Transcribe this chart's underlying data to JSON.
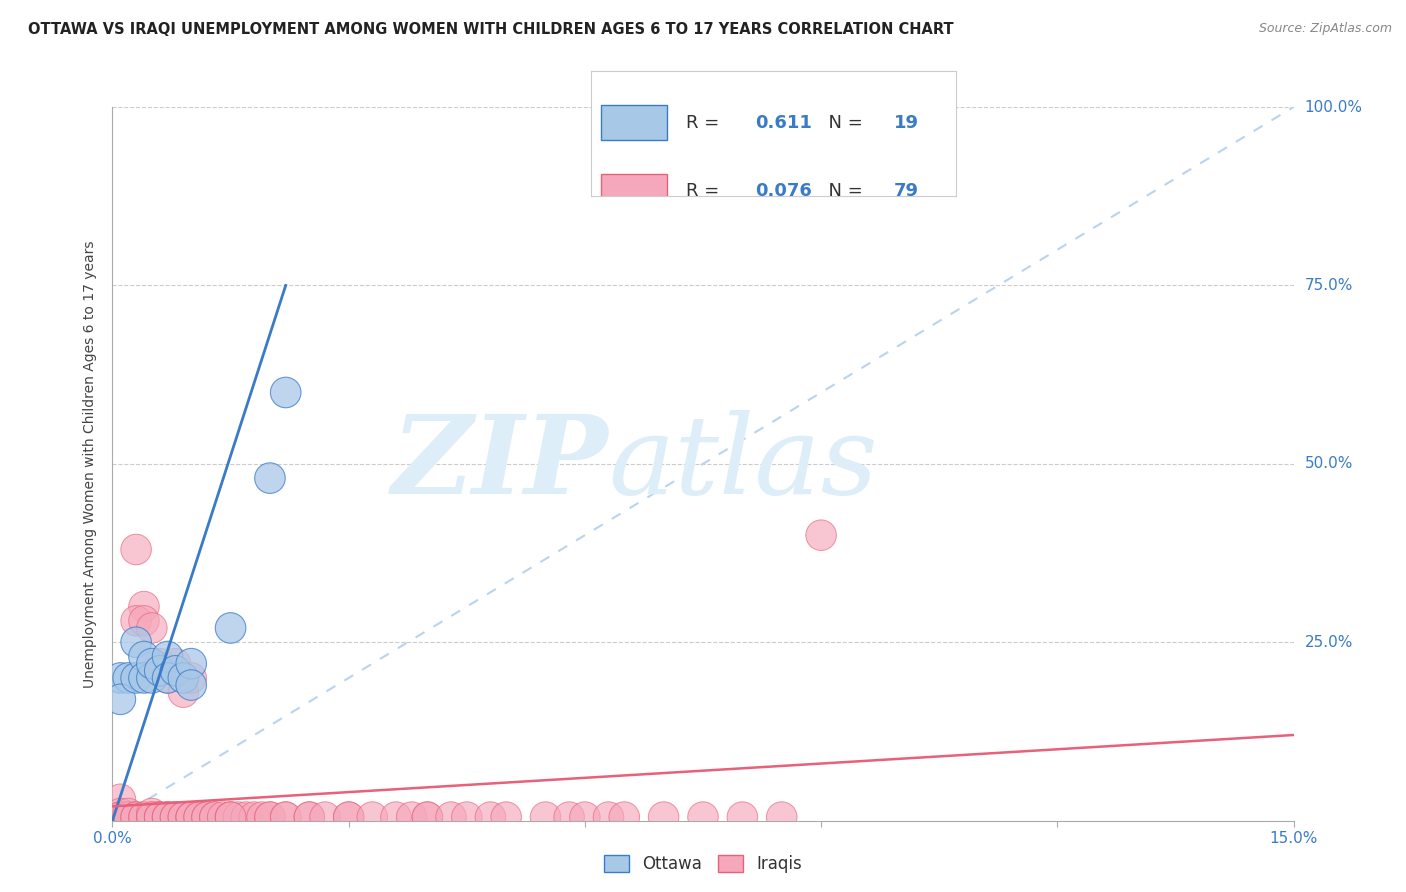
{
  "title": "OTTAWA VS IRAQI UNEMPLOYMENT AMONG WOMEN WITH CHILDREN AGES 6 TO 17 YEARS CORRELATION CHART",
  "source": "Source: ZipAtlas.com",
  "ylabel": "Unemployment Among Women with Children Ages 6 to 17 years",
  "xlim": [
    0.0,
    0.15
  ],
  "ylim": [
    0.0,
    1.0
  ],
  "ottawa_color": "#a8c8e8",
  "iraqi_color": "#f5a8bb",
  "ottawa_line_color": "#3a7bc8",
  "iraqi_line_color": "#e8607a",
  "diag_line_color": "#b8d4ee",
  "legend_R_ottawa": "0.611",
  "legend_N_ottawa": "19",
  "legend_R_iraqi": "0.076",
  "legend_N_iraqi": "79",
  "num_color": "#3a7bc8",
  "ottawa_points": [
    [
      0.001,
      0.2
    ],
    [
      0.002,
      0.2
    ],
    [
      0.001,
      0.17
    ],
    [
      0.003,
      0.25
    ],
    [
      0.003,
      0.2
    ],
    [
      0.004,
      0.23
    ],
    [
      0.004,
      0.2
    ],
    [
      0.005,
      0.2
    ],
    [
      0.005,
      0.22
    ],
    [
      0.006,
      0.21
    ],
    [
      0.007,
      0.23
    ],
    [
      0.007,
      0.2
    ],
    [
      0.008,
      0.21
    ],
    [
      0.009,
      0.2
    ],
    [
      0.01,
      0.22
    ],
    [
      0.01,
      0.19
    ],
    [
      0.015,
      0.27
    ],
    [
      0.02,
      0.48
    ],
    [
      0.022,
      0.6
    ]
  ],
  "iraqi_points": [
    [
      0.001,
      0.03
    ],
    [
      0.001,
      0.01
    ],
    [
      0.001,
      0.005
    ],
    [
      0.001,
      0.005
    ],
    [
      0.002,
      0.005
    ],
    [
      0.002,
      0.005
    ],
    [
      0.002,
      0.01
    ],
    [
      0.003,
      0.005
    ],
    [
      0.003,
      0.005
    ],
    [
      0.003,
      0.38
    ],
    [
      0.004,
      0.005
    ],
    [
      0.004,
      0.005
    ],
    [
      0.004,
      0.3
    ],
    [
      0.005,
      0.005
    ],
    [
      0.005,
      0.01
    ],
    [
      0.005,
      0.005
    ],
    [
      0.006,
      0.005
    ],
    [
      0.006,
      0.005
    ],
    [
      0.006,
      0.005
    ],
    [
      0.007,
      0.005
    ],
    [
      0.007,
      0.005
    ],
    [
      0.007,
      0.005
    ],
    [
      0.008,
      0.005
    ],
    [
      0.008,
      0.005
    ],
    [
      0.009,
      0.005
    ],
    [
      0.009,
      0.005
    ],
    [
      0.01,
      0.005
    ],
    [
      0.01,
      0.005
    ],
    [
      0.01,
      0.005
    ],
    [
      0.011,
      0.005
    ],
    [
      0.011,
      0.005
    ],
    [
      0.012,
      0.005
    ],
    [
      0.012,
      0.005
    ],
    [
      0.013,
      0.005
    ],
    [
      0.013,
      0.005
    ],
    [
      0.014,
      0.005
    ],
    [
      0.015,
      0.005
    ],
    [
      0.015,
      0.005
    ],
    [
      0.016,
      0.005
    ],
    [
      0.017,
      0.005
    ],
    [
      0.018,
      0.005
    ],
    [
      0.019,
      0.005
    ],
    [
      0.02,
      0.005
    ],
    [
      0.02,
      0.005
    ],
    [
      0.022,
      0.005
    ],
    [
      0.022,
      0.005
    ],
    [
      0.025,
      0.005
    ],
    [
      0.025,
      0.005
    ],
    [
      0.027,
      0.005
    ],
    [
      0.03,
      0.005
    ],
    [
      0.03,
      0.005
    ],
    [
      0.033,
      0.005
    ],
    [
      0.036,
      0.005
    ],
    [
      0.038,
      0.005
    ],
    [
      0.04,
      0.005
    ],
    [
      0.04,
      0.005
    ],
    [
      0.043,
      0.005
    ],
    [
      0.045,
      0.005
    ],
    [
      0.048,
      0.005
    ],
    [
      0.05,
      0.005
    ],
    [
      0.055,
      0.005
    ],
    [
      0.058,
      0.005
    ],
    [
      0.06,
      0.005
    ],
    [
      0.063,
      0.005
    ],
    [
      0.065,
      0.005
    ],
    [
      0.07,
      0.005
    ],
    [
      0.075,
      0.005
    ],
    [
      0.08,
      0.005
    ],
    [
      0.085,
      0.005
    ],
    [
      0.09,
      0.4
    ],
    [
      0.003,
      0.28
    ],
    [
      0.004,
      0.28
    ],
    [
      0.005,
      0.27
    ],
    [
      0.006,
      0.22
    ],
    [
      0.007,
      0.2
    ],
    [
      0.008,
      0.22
    ],
    [
      0.009,
      0.18
    ],
    [
      0.01,
      0.2
    ],
    [
      0.015,
      0.005
    ]
  ]
}
